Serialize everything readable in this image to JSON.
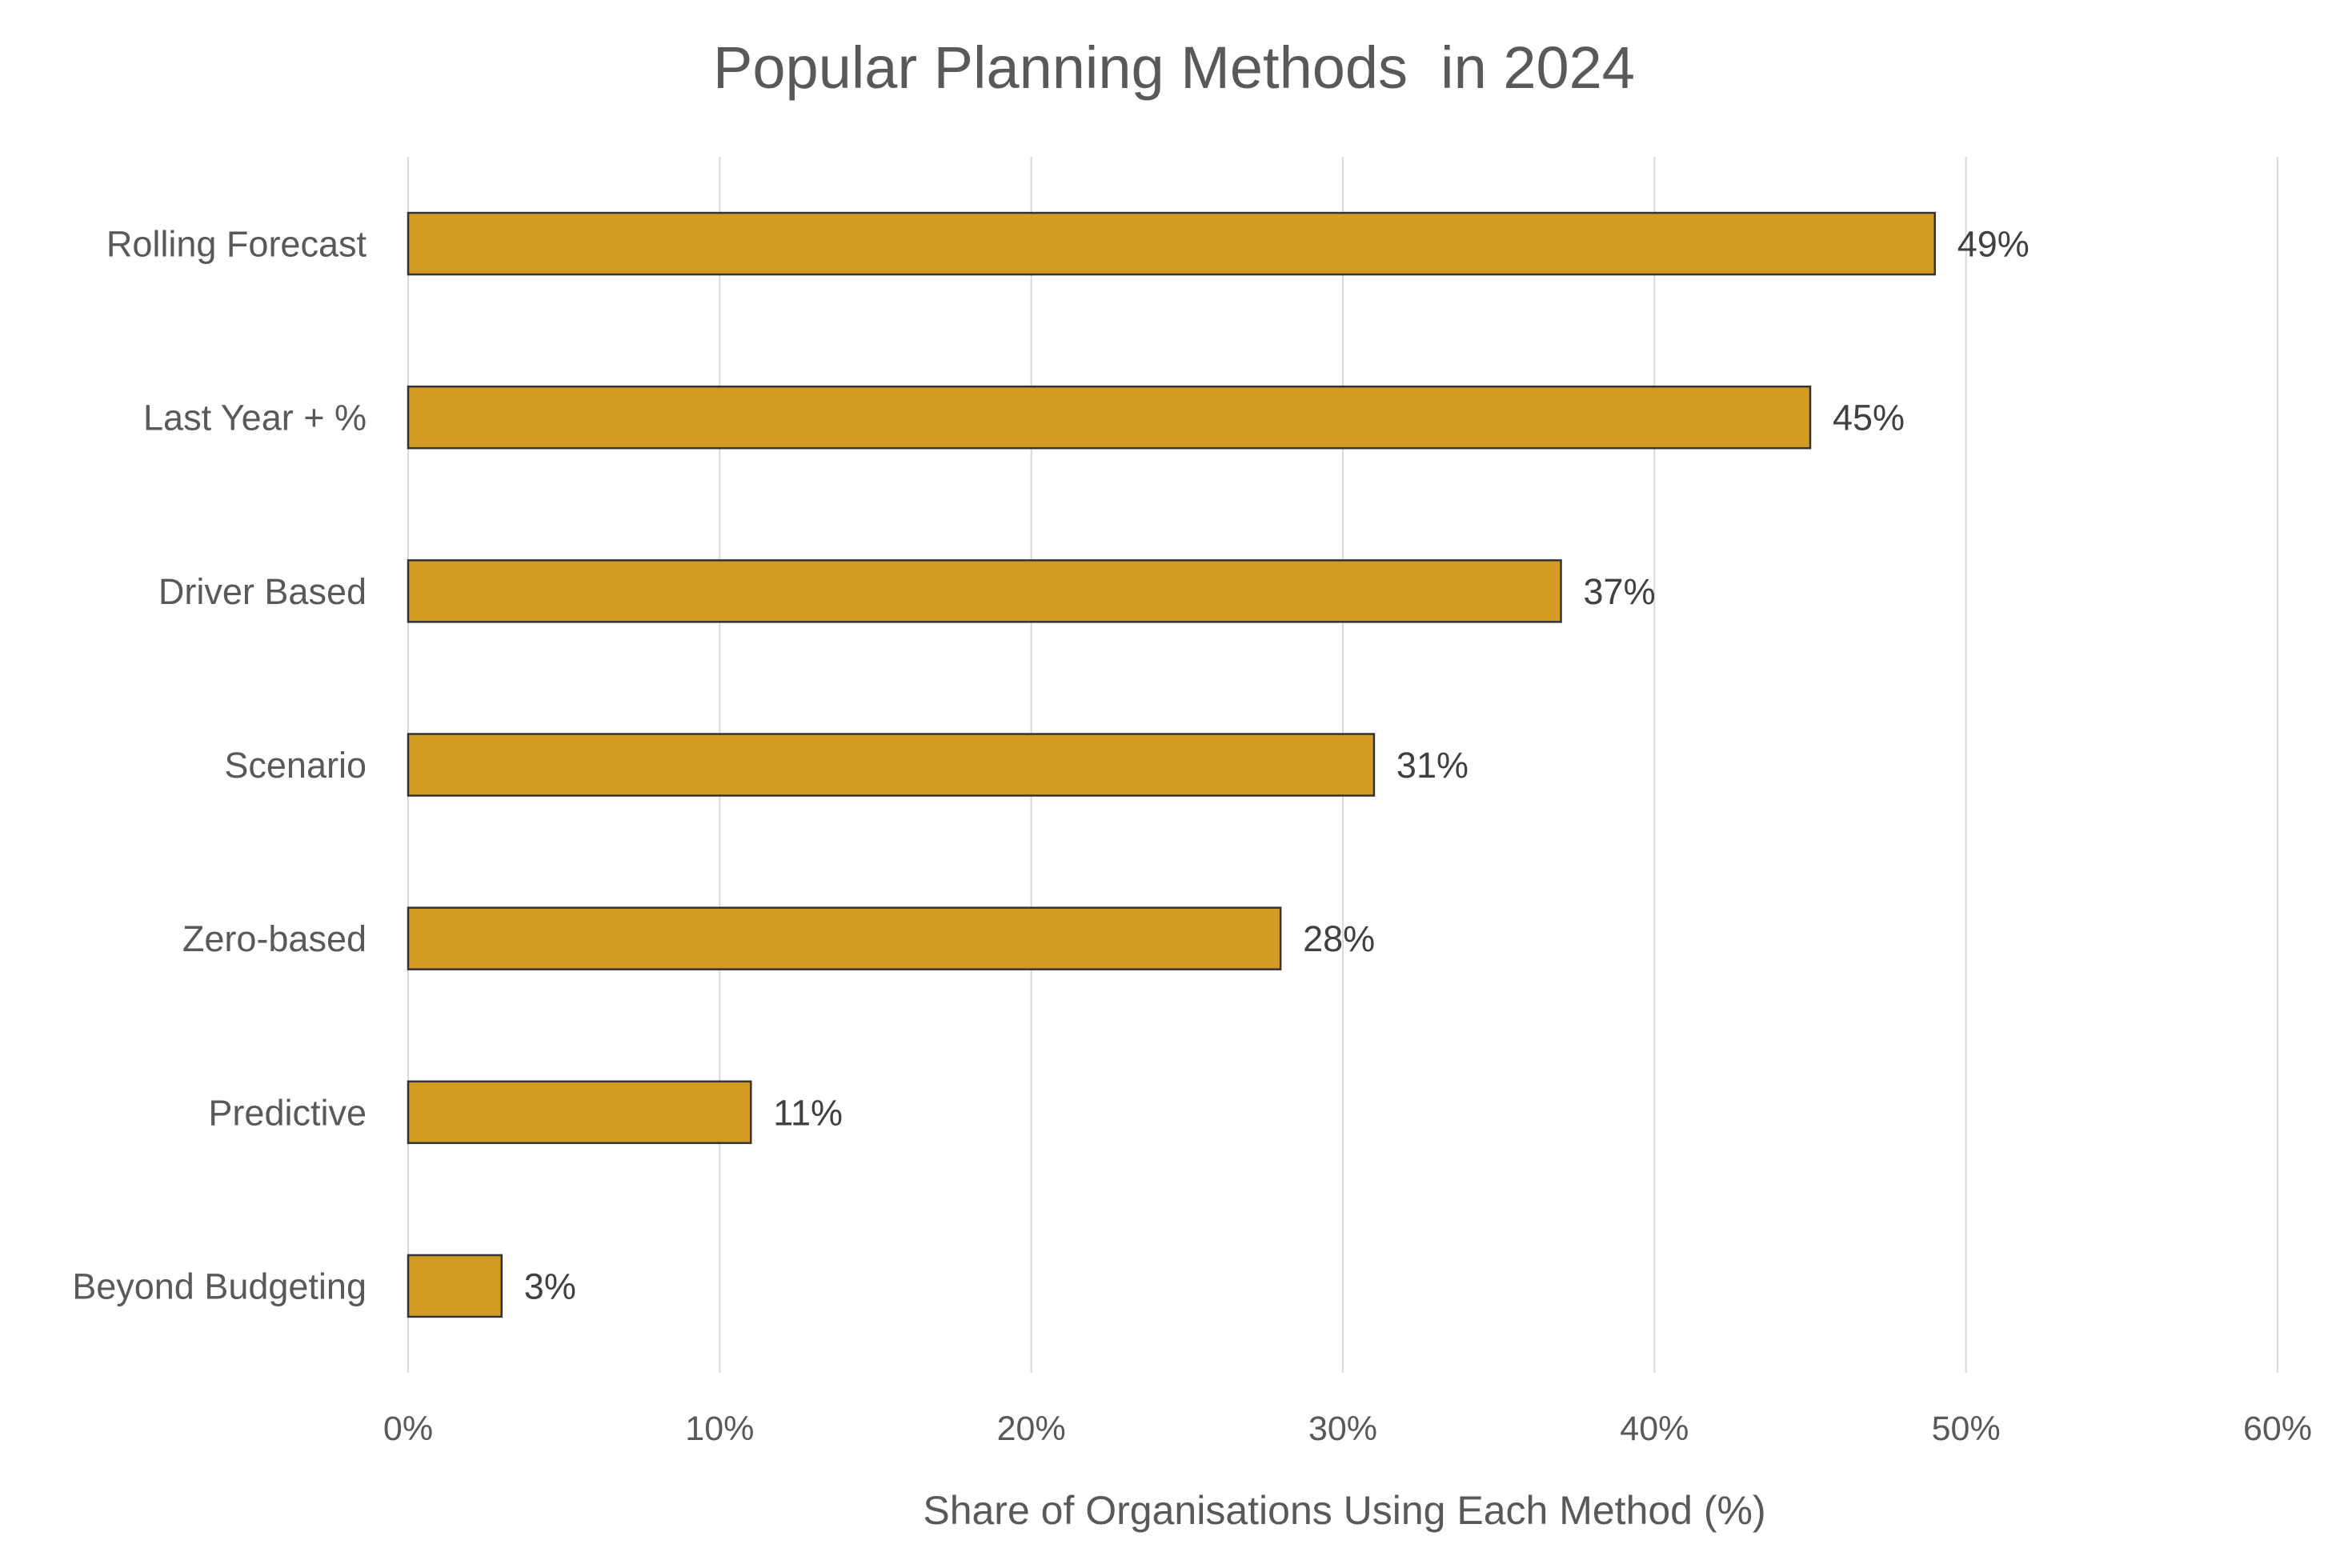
{
  "chart_data": {
    "type": "bar",
    "orientation": "horizontal",
    "title": "Popular Planning Methods  in 2024",
    "xlabel": "Share of Organisations Using Each Method (%)",
    "ylabel": "",
    "categories": [
      "Rolling Forecast",
      "Last Year + %",
      "Driver Based",
      "Scenario",
      "Zero-based",
      "Predictive",
      "Beyond Budgeting"
    ],
    "values": [
      49,
      45,
      37,
      31,
      28,
      11,
      3
    ],
    "data_labels": [
      "49%",
      "45%",
      "37%",
      "31%",
      "28%",
      "11%",
      "3%"
    ],
    "xlim": [
      0,
      60
    ],
    "xticks": [
      0,
      10,
      20,
      30,
      40,
      50,
      60
    ],
    "xtick_labels": [
      "0%",
      "10%",
      "20%",
      "30%",
      "40%",
      "50%",
      "60%"
    ],
    "grid": "vertical",
    "legend": "none",
    "colors": {
      "bar": "#D39B24",
      "bar_border": "#333333",
      "text": "#595959",
      "grid": "#D9D9D9"
    }
  }
}
